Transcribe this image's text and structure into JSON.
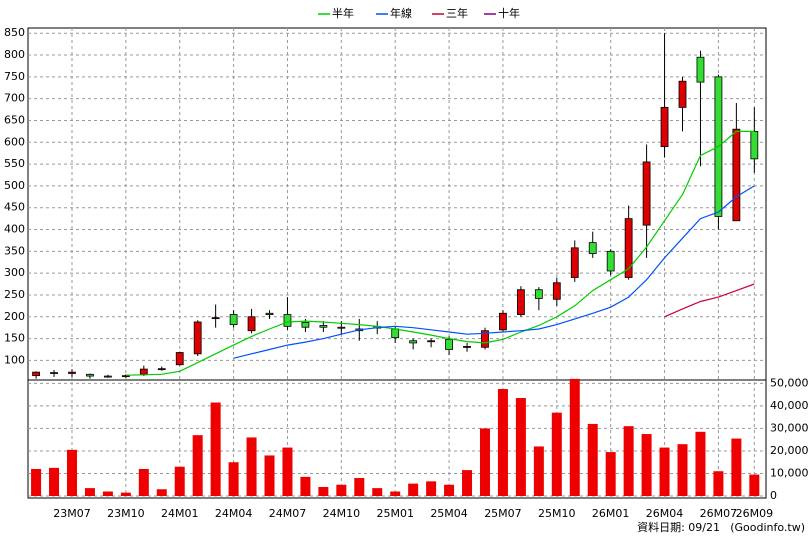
{
  "chart_data": {
    "type": "candlestick",
    "categories": [
      null,
      null,
      "23M07",
      null,
      null,
      "23M10",
      null,
      null,
      "24M01",
      null,
      null,
      "24M04",
      null,
      null,
      "24M07",
      null,
      null,
      "24M10",
      null,
      null,
      "25M01",
      null,
      null,
      "25M04",
      null,
      null,
      "25M07",
      null,
      null,
      "25M10",
      null,
      null,
      "26M01",
      null,
      null,
      "26M04",
      null,
      null,
      "26M07",
      null,
      "26M09"
    ],
    "open": [
      65,
      72,
      70,
      68,
      64,
      63,
      68,
      80,
      90,
      115,
      196,
      205,
      168,
      208,
      205,
      187,
      180,
      176,
      172,
      178,
      172,
      145,
      143,
      148,
      130,
      130,
      170,
      205,
      262,
      240,
      290,
      370,
      350,
      290,
      410,
      590,
      680,
      795,
      750,
      420,
      625
    ],
    "high": [
      75,
      78,
      80,
      70,
      67,
      68,
      88,
      86,
      120,
      192,
      228,
      215,
      218,
      215,
      245,
      195,
      190,
      190,
      195,
      190,
      178,
      150,
      150,
      155,
      140,
      175,
      215,
      270,
      268,
      290,
      375,
      395,
      355,
      455,
      595,
      850,
      750,
      810,
      755,
      690,
      680
    ],
    "low": [
      58,
      62,
      62,
      58,
      60,
      60,
      64,
      76,
      88,
      110,
      175,
      175,
      162,
      195,
      170,
      165,
      165,
      160,
      145,
      160,
      140,
      125,
      130,
      112,
      120,
      125,
      165,
      200,
      215,
      225,
      280,
      335,
      295,
      285,
      335,
      565,
      625,
      545,
      400,
      420,
      530
    ],
    "close": [
      73,
      71,
      73,
      64,
      63,
      65,
      80,
      81,
      118,
      188,
      198,
      182,
      200,
      205,
      178,
      176,
      176,
      174,
      168,
      174,
      152,
      140,
      145,
      125,
      132,
      168,
      208,
      262,
      242,
      278,
      358,
      345,
      305,
      425,
      555,
      680,
      740,
      738,
      430,
      630,
      562
    ],
    "up_color": "#dd0000",
    "down_color": "#33dd33",
    "series": [
      {
        "name": "半年",
        "color": "#00cc00",
        "values": [
          null,
          null,
          null,
          null,
          null,
          66,
          67,
          68,
          75,
          95,
          115,
          135,
          155,
          172,
          188,
          190,
          188,
          185,
          182,
          178,
          172,
          165,
          158,
          150,
          143,
          140,
          148,
          165,
          180,
          200,
          225,
          260,
          285,
          310,
          360,
          420,
          480,
          570,
          590,
          625,
          625
        ]
      },
      {
        "name": "年線",
        "color": "#0050ff",
        "values": [
          null,
          null,
          null,
          null,
          null,
          null,
          null,
          null,
          null,
          null,
          null,
          105,
          115,
          125,
          135,
          142,
          150,
          160,
          170,
          175,
          178,
          175,
          170,
          165,
          160,
          162,
          165,
          168,
          172,
          182,
          195,
          208,
          222,
          245,
          285,
          335,
          380,
          425,
          440,
          475,
          500
        ]
      },
      {
        "name": "三年",
        "color": "#cc0033",
        "values": [
          null,
          null,
          null,
          null,
          null,
          null,
          null,
          null,
          null,
          null,
          null,
          null,
          null,
          null,
          null,
          null,
          null,
          null,
          null,
          null,
          null,
          null,
          null,
          null,
          null,
          null,
          null,
          null,
          null,
          null,
          null,
          null,
          null,
          null,
          null,
          200,
          218,
          235,
          245,
          260,
          275
        ]
      },
      {
        "name": "十年",
        "color": "#800080",
        "values": [
          null,
          null,
          null,
          null,
          null,
          null,
          null,
          null,
          null,
          null,
          null,
          null,
          null,
          null,
          null,
          null,
          null,
          null,
          null,
          null,
          null,
          null,
          null,
          null,
          null,
          null,
          null,
          null,
          null,
          null,
          null,
          null,
          null,
          null,
          null,
          null,
          null,
          null,
          null,
          null,
          null
        ]
      }
    ],
    "ylim": [
      55,
      862
    ],
    "yticks": [
      100,
      150,
      200,
      250,
      300,
      350,
      400,
      450,
      500,
      550,
      600,
      650,
      700,
      750,
      800,
      850
    ],
    "grid": true,
    "legend": "top",
    "volume": {
      "color": "#ee0000",
      "values": [
        12000,
        12500,
        20500,
        3500,
        2000,
        1500,
        12000,
        3000,
        13000,
        27000,
        41500,
        15000,
        26000,
        18000,
        21500,
        8500,
        4000,
        5000,
        8000,
        3500,
        2000,
        5500,
        6500,
        5000,
        11500,
        30000,
        47500,
        43500,
        22000,
        37000,
        52000,
        32000,
        19500,
        31000,
        27500,
        21500,
        23000,
        28500,
        11000,
        25500,
        9500
      ],
      "ylim": [
        0,
        51500
      ],
      "yticks": [
        0,
        {
          "value": 10000,
          "label": "10,000"
        },
        {
          "value": 20000,
          "label": "20,000"
        },
        {
          "value": 30000,
          "label": "30,000"
        },
        {
          "value": 40000,
          "label": "40,000"
        },
        {
          "value": 50000,
          "label": "50,000"
        }
      ]
    },
    "annotations": [
      "資料日期: 09/21",
      "(Goodinfo.tw)"
    ]
  }
}
